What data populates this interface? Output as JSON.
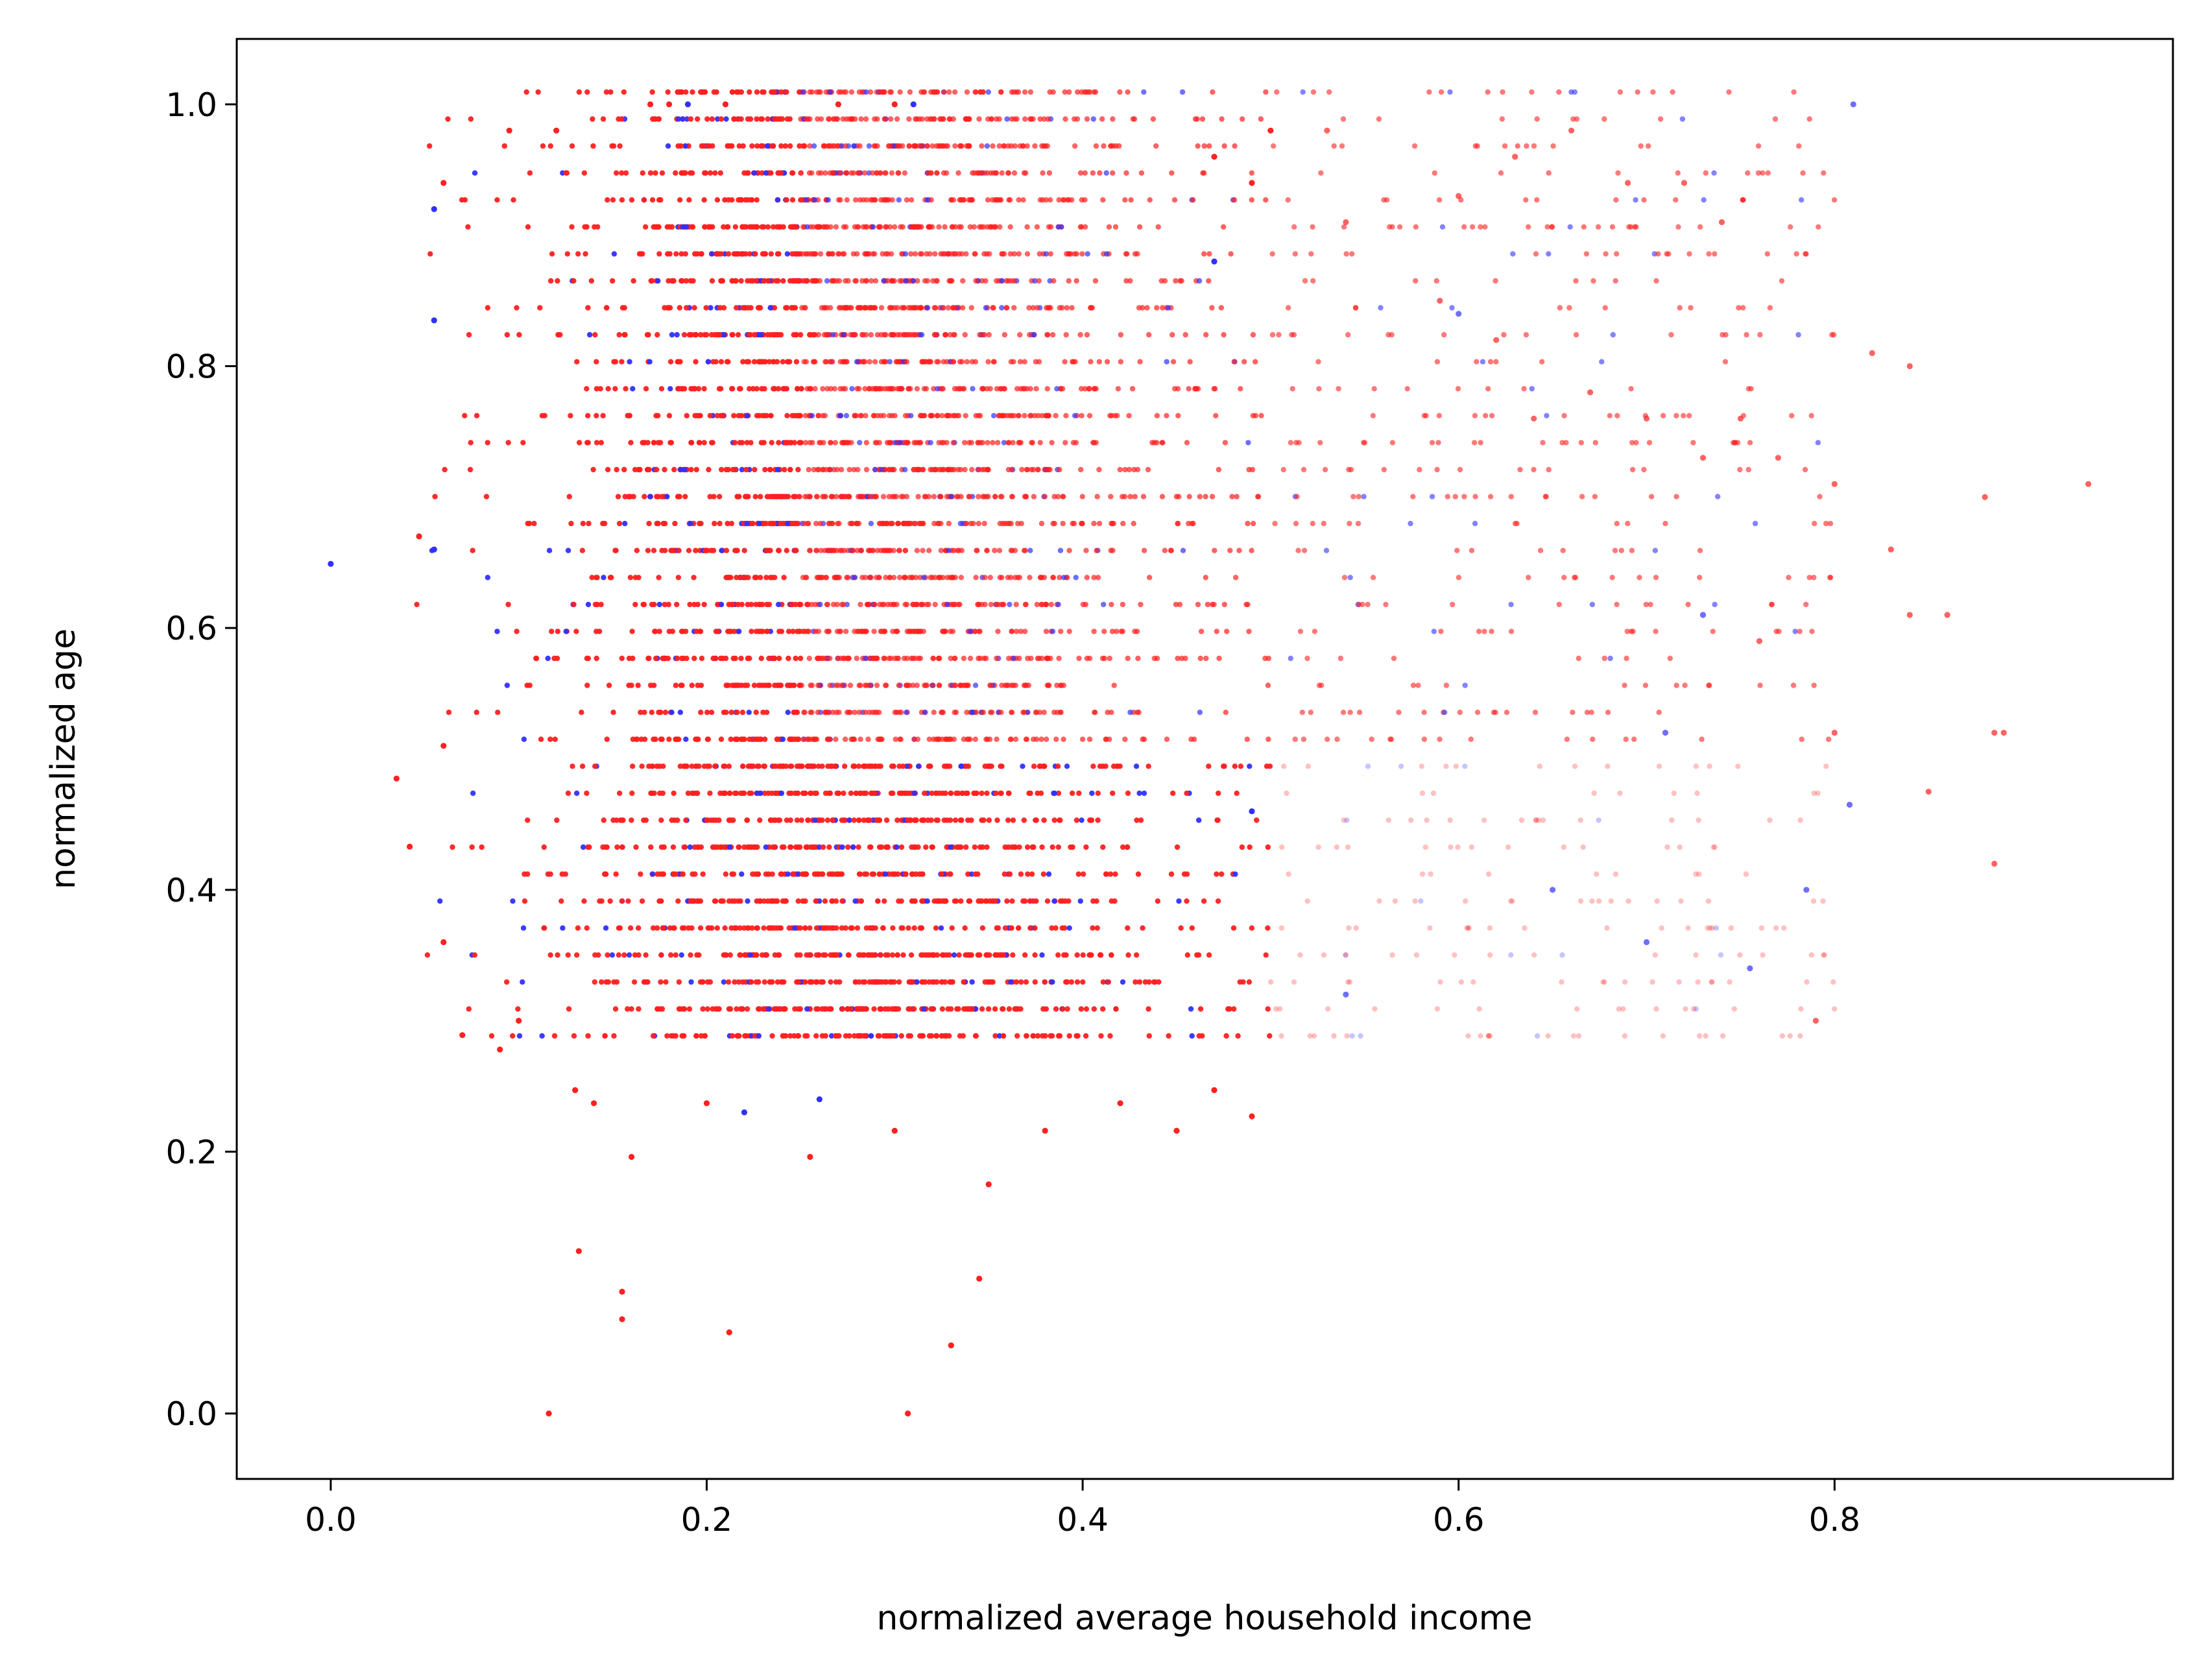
{
  "chart_data": {
    "type": "scatter",
    "title": "",
    "xlabel": "normalized average household income",
    "ylabel": "normalized age",
    "xlim": [
      -0.05,
      0.98
    ],
    "ylim": [
      -0.05,
      1.05
    ],
    "xticks": [
      0.0,
      0.2,
      0.4,
      0.6,
      0.8
    ],
    "xtick_labels": [
      "0.0",
      "0.2",
      "0.4",
      "0.6",
      "0.8"
    ],
    "yticks": [
      0.0,
      0.2,
      0.4,
      0.6,
      0.8,
      1.0
    ],
    "ytick_labels": [
      "0.0",
      "0.2",
      "0.4",
      "0.6",
      "0.8",
      "1.0"
    ],
    "grid": false,
    "legend": "none",
    "colors": {
      "majority": "#ff2020",
      "minority": "#3030ff"
    },
    "series": [
      {
        "name": "red points (majority class)",
        "color": "#ff2020",
        "points": [
          [
            0.116,
            0.0
          ],
          [
            0.307,
            0.0
          ],
          [
            0.33,
            0.052
          ],
          [
            0.212,
            0.062
          ],
          [
            0.155,
            0.072
          ],
          [
            0.155,
            0.093
          ],
          [
            0.345,
            0.103
          ],
          [
            0.132,
            0.124
          ],
          [
            0.35,
            0.175
          ],
          [
            0.16,
            0.196
          ],
          [
            0.255,
            0.196
          ],
          [
            0.3,
            0.216
          ],
          [
            0.38,
            0.216
          ],
          [
            0.45,
            0.216
          ],
          [
            0.14,
            0.237
          ],
          [
            0.2,
            0.237
          ],
          [
            0.42,
            0.237
          ],
          [
            0.49,
            0.227
          ],
          [
            0.13,
            0.247
          ],
          [
            0.47,
            0.247
          ],
          [
            0.035,
            0.485
          ],
          [
            0.042,
            0.433
          ],
          [
            0.07,
            0.289
          ],
          [
            0.09,
            0.278
          ],
          [
            0.047,
            0.67
          ],
          [
            0.06,
            0.36
          ],
          [
            0.06,
            0.94
          ],
          [
            0.06,
            0.51
          ],
          [
            0.095,
            0.98
          ],
          [
            0.1,
            0.3
          ],
          [
            0.12,
            0.98
          ],
          [
            0.17,
            1.0
          ],
          [
            0.18,
            1.0
          ],
          [
            0.21,
            1.0
          ],
          [
            0.27,
            1.0
          ],
          [
            0.3,
            1.0
          ],
          [
            0.5,
            0.98
          ],
          [
            0.53,
            0.98
          ],
          [
            0.49,
            0.94
          ],
          [
            0.47,
            0.96
          ],
          [
            0.6,
            0.93
          ],
          [
            0.54,
            0.91
          ],
          [
            0.59,
            0.85
          ],
          [
            0.62,
            0.82
          ],
          [
            0.64,
            0.76
          ],
          [
            0.66,
            0.98
          ],
          [
            0.69,
            0.94
          ],
          [
            0.72,
            0.94
          ],
          [
            0.74,
            0.91
          ],
          [
            0.73,
            0.73
          ],
          [
            0.77,
            0.73
          ],
          [
            0.8,
            0.71
          ],
          [
            0.82,
            0.81
          ],
          [
            0.84,
            0.8
          ],
          [
            0.83,
            0.66
          ],
          [
            0.8,
            0.52
          ],
          [
            0.84,
            0.61
          ],
          [
            0.86,
            0.61
          ],
          [
            0.89,
            0.52
          ],
          [
            0.885,
            0.52
          ],
          [
            0.88,
            0.7
          ],
          [
            0.935,
            0.71
          ],
          [
            0.885,
            0.42
          ],
          [
            0.79,
            0.3
          ],
          [
            0.85,
            0.475
          ],
          [
            0.63,
            0.96
          ],
          [
            0.67,
            0.78
          ],
          [
            0.7,
            0.76
          ],
          [
            0.75,
            0.76
          ],
          [
            0.76,
            0.59
          ]
        ]
      },
      {
        "name": "blue points (minority class)",
        "color": "#3030ff",
        "points": [
          [
            0.0,
            0.649
          ],
          [
            0.055,
            0.66
          ],
          [
            0.055,
            0.92
          ],
          [
            0.055,
            0.835
          ],
          [
            0.19,
            1.0
          ],
          [
            0.31,
            1.0
          ],
          [
            0.81,
            1.0
          ],
          [
            0.808,
            0.465
          ],
          [
            0.785,
            0.4
          ],
          [
            0.755,
            0.34
          ],
          [
            0.7,
            0.36
          ],
          [
            0.65,
            0.4
          ],
          [
            0.54,
            0.32
          ],
          [
            0.22,
            0.23
          ],
          [
            0.26,
            0.24
          ],
          [
            0.49,
            0.46
          ],
          [
            0.47,
            0.88
          ],
          [
            0.6,
            0.84
          ],
          [
            0.73,
            0.61
          ],
          [
            0.71,
            0.52
          ]
        ]
      }
    ]
  }
}
